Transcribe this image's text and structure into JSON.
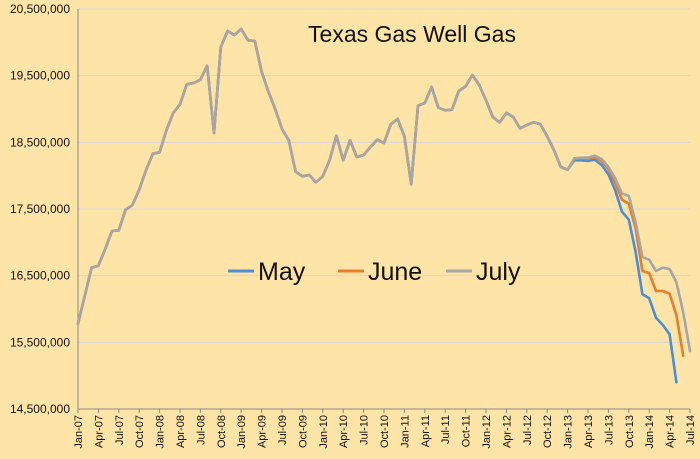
{
  "chart_data": {
    "type": "line",
    "title": "Texas Gas Well Gas",
    "xlabel": "",
    "ylabel": "",
    "ylim": [
      14500000,
      20500000
    ],
    "yticks": [
      14500000,
      15500000,
      16500000,
      17500000,
      18500000,
      19500000,
      20500000
    ],
    "ytick_labels": [
      "14,500,000",
      "15,500,000",
      "16,500,000",
      "17,500,000",
      "18,500,000",
      "19,500,000",
      "20,500,000"
    ],
    "grid": true,
    "legend_position": "center",
    "x_start_month": "Jan-07",
    "xtick_labels": [
      "Jan-07",
      "Apr-07",
      "Jul-07",
      "Oct-07",
      "Jan-08",
      "Apr-08",
      "Jul-08",
      "Oct-08",
      "Jan-09",
      "Apr-09",
      "Jul-09",
      "Oct-09",
      "Jan-10",
      "Apr-10",
      "Jul-10",
      "Oct-10",
      "Jan-11",
      "Apr-11",
      "Jul-11",
      "Oct-11",
      "Jan-12",
      "Apr-12",
      "Jul-12",
      "Oct-12",
      "Jan-13",
      "Apr-13",
      "Jul-13",
      "Oct-13",
      "Jan-14",
      "Apr-14",
      "Jul-14"
    ],
    "series": [
      {
        "name": "May",
        "color": "#4a8fd6",
        "values": [
          15780000,
          16200000,
          16620000,
          16650000,
          16900000,
          17170000,
          17180000,
          17490000,
          17560000,
          17790000,
          18080000,
          18330000,
          18350000,
          18680000,
          18940000,
          19070000,
          19370000,
          19390000,
          19440000,
          19650000,
          18640000,
          19930000,
          20170000,
          20110000,
          20200000,
          20030000,
          20020000,
          19560000,
          19260000,
          19000000,
          18700000,
          18530000,
          18060000,
          17990000,
          18010000,
          17900000,
          17990000,
          18230000,
          18600000,
          18230000,
          18530000,
          18280000,
          18310000,
          18430000,
          18540000,
          18490000,
          18770000,
          18850000,
          18590000,
          17870000,
          19050000,
          19090000,
          19330000,
          19020000,
          18980000,
          18990000,
          19270000,
          19340000,
          19510000,
          19360000,
          19130000,
          18880000,
          18800000,
          18940000,
          18880000,
          18710000,
          18760000,
          18800000,
          18770000,
          18590000,
          18380000,
          18130000,
          18090000,
          18230000,
          18230000,
          18220000,
          18240000,
          18160000,
          18020000,
          17780000,
          17460000,
          17340000,
          16860000,
          16220000,
          16160000,
          15870000,
          15760000,
          15620000,
          14900000
        ]
      },
      {
        "name": "June",
        "color": "#e87d2a",
        "values": [
          15780000,
          16200000,
          16620000,
          16650000,
          16900000,
          17170000,
          17180000,
          17490000,
          17560000,
          17790000,
          18080000,
          18330000,
          18350000,
          18680000,
          18940000,
          19070000,
          19370000,
          19390000,
          19440000,
          19650000,
          18640000,
          19930000,
          20170000,
          20110000,
          20200000,
          20030000,
          20020000,
          19560000,
          19260000,
          19000000,
          18700000,
          18530000,
          18060000,
          17990000,
          18010000,
          17900000,
          17990000,
          18230000,
          18600000,
          18230000,
          18530000,
          18280000,
          18310000,
          18430000,
          18540000,
          18490000,
          18770000,
          18850000,
          18590000,
          17870000,
          19050000,
          19090000,
          19330000,
          19020000,
          18980000,
          18990000,
          19270000,
          19340000,
          19510000,
          19360000,
          19130000,
          18880000,
          18800000,
          18940000,
          18880000,
          18710000,
          18760000,
          18800000,
          18770000,
          18590000,
          18380000,
          18130000,
          18090000,
          18250000,
          18260000,
          18250000,
          18280000,
          18220000,
          18100000,
          17890000,
          17640000,
          17580000,
          17210000,
          16570000,
          16540000,
          16270000,
          16270000,
          16230000,
          15910000,
          15300000
        ]
      },
      {
        "name": "July",
        "color": "#a6a6a6",
        "values": [
          15780000,
          16200000,
          16620000,
          16650000,
          16900000,
          17170000,
          17180000,
          17490000,
          17560000,
          17790000,
          18080000,
          18330000,
          18350000,
          18680000,
          18940000,
          19070000,
          19370000,
          19390000,
          19440000,
          19650000,
          18640000,
          19930000,
          20170000,
          20110000,
          20200000,
          20030000,
          20020000,
          19560000,
          19260000,
          19000000,
          18700000,
          18530000,
          18060000,
          17990000,
          18010000,
          17900000,
          17990000,
          18230000,
          18600000,
          18230000,
          18530000,
          18280000,
          18310000,
          18430000,
          18540000,
          18490000,
          18770000,
          18850000,
          18590000,
          17870000,
          19050000,
          19090000,
          19330000,
          19020000,
          18980000,
          18990000,
          19270000,
          19340000,
          19510000,
          19360000,
          19130000,
          18880000,
          18800000,
          18940000,
          18880000,
          18710000,
          18760000,
          18800000,
          18770000,
          18590000,
          18380000,
          18130000,
          18090000,
          18260000,
          18270000,
          18270000,
          18300000,
          18250000,
          18130000,
          17960000,
          17730000,
          17700000,
          17300000,
          16780000,
          16740000,
          16570000,
          16620000,
          16600000,
          16400000,
          15950000,
          15370000
        ]
      }
    ]
  }
}
